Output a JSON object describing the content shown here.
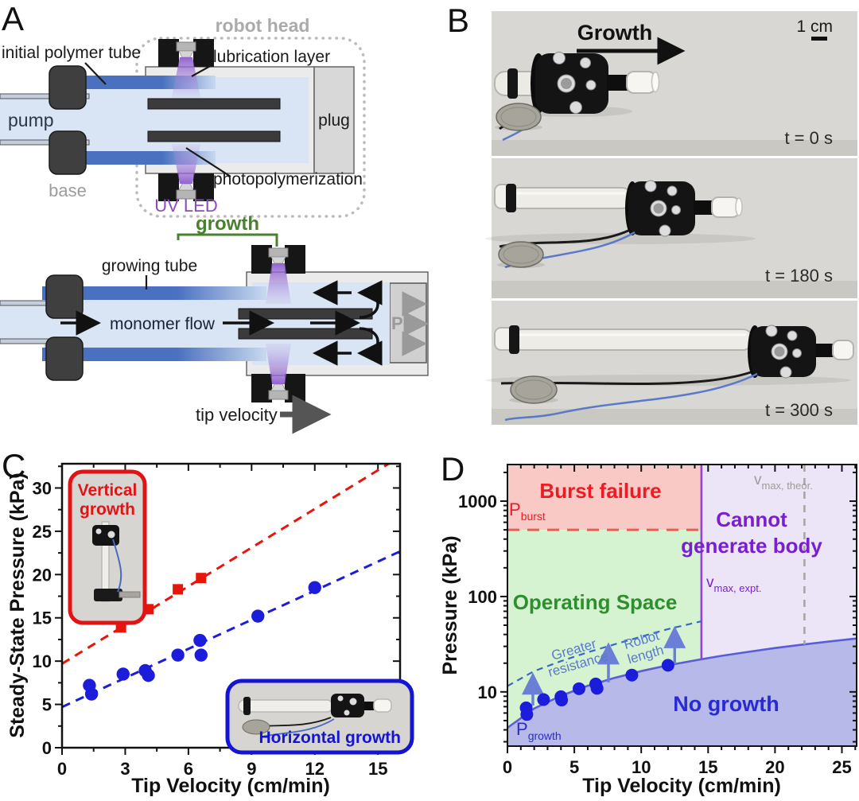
{
  "figure": {
    "panel_labels": {
      "a": "A",
      "b": "B",
      "c": "C",
      "d": "D"
    }
  },
  "panel_a": {
    "labels": {
      "robot_head": "robot head",
      "initial_polymer_tube": "initial polymer tube",
      "lubrication_layer": "lubrication layer",
      "pump": "pump",
      "plug": "plug",
      "base": "base",
      "uv_led": "UV LED",
      "photopolymerization": "photopolymerization",
      "growth": "growth",
      "growing_tube": "growing tube",
      "monomer_flow": "monomer flow",
      "pressure_symbol": "P",
      "tip_velocity": "tip velocity"
    },
    "colors": {
      "tube_blue": "#4a70c0",
      "fluid_blue": "#d9e5f4",
      "uv_purple": "#8b5bcc",
      "growth_green": "#4a8030",
      "gray_text": "#9c9c9c"
    }
  },
  "panel_b": {
    "growth_arrow_label": "Growth",
    "scale_bar_label": "1 cm",
    "frames": [
      {
        "timestamp": "t = 0 s"
      },
      {
        "timestamp": "t = 180 s"
      },
      {
        "timestamp": "t = 300 s"
      }
    ]
  },
  "chart_data": [
    {
      "panel": "C",
      "type": "scatter",
      "xlabel": "Tip Velocity (cm/min)",
      "ylabel": "Steady-State Pressure (kPa)",
      "xlim": [
        0,
        16.05
      ],
      "ylim": [
        0,
        32.8
      ],
      "xticks": [
        0,
        3,
        6,
        9,
        12,
        15
      ],
      "yticks": [
        0,
        5,
        10,
        15,
        20,
        25,
        30
      ],
      "x_minor_step": 1.5,
      "y_minor_step": 2.5,
      "grid": false,
      "series": [
        {
          "name": "Vertical growth",
          "marker": "square",
          "color": "#e8150b",
          "points": [
            [
              2.8,
              13.9
            ],
            [
              4.1,
              16.0
            ],
            [
              5.5,
              18.3
            ],
            [
              6.6,
              19.6
            ]
          ],
          "fit": {
            "intercept": 9.7,
            "slope": 1.49,
            "line_style": "dashed"
          }
        },
        {
          "name": "Horizontal growth",
          "marker": "circle",
          "color": "#1c1cdb",
          "points": [
            [
              1.3,
              7.2
            ],
            [
              1.4,
              6.2
            ],
            [
              2.9,
              8.5
            ],
            [
              3.95,
              8.9
            ],
            [
              4.1,
              8.35
            ],
            [
              5.5,
              10.7
            ],
            [
              6.55,
              12.4
            ],
            [
              6.6,
              10.7
            ],
            [
              9.3,
              15.2
            ],
            [
              12.0,
              18.5
            ]
          ],
          "fit": {
            "intercept": 4.7,
            "slope": 1.12,
            "line_style": "dashed"
          }
        }
      ],
      "insets": [
        {
          "id": "vertical",
          "label_lines": [
            "Vertical",
            "growth"
          ],
          "border_color": "#e01414"
        },
        {
          "id": "horizontal",
          "label_lines": [
            "Horizontal growth"
          ],
          "border_color": "#1414d2"
        }
      ]
    },
    {
      "panel": "D",
      "type": "scatter",
      "yscale": "log",
      "xlabel": "Tip Velocity (cm/min)",
      "ylabel": "Pressure (kPa)",
      "xlim": [
        0,
        26.1
      ],
      "ylim": [
        2.7,
        2420
      ],
      "xticks": [
        0,
        5,
        10,
        15,
        20,
        25
      ],
      "yticks": [
        10,
        100,
        1000
      ],
      "x_minor_step": 1,
      "grid": false,
      "points": {
        "name": "Measured steady-state growth pressure",
        "marker": "circle",
        "color": "#1c1cdb",
        "data": [
          [
            1.4,
            6.8
          ],
          [
            1.45,
            5.8
          ],
          [
            2.7,
            8.3
          ],
          [
            4.0,
            8.9
          ],
          [
            4.05,
            8.2
          ],
          [
            5.35,
            10.8
          ],
          [
            6.6,
            12.1
          ],
          [
            6.7,
            10.9
          ],
          [
            9.3,
            15.0
          ],
          [
            12.0,
            19.0
          ]
        ]
      },
      "boundaries": {
        "p_burst_kpa": 500,
        "v_max_expt_cm_min": 14.5,
        "v_max_theor_cm_min": 22.2,
        "p_growth_curve": [
          [
            0,
            4.2
          ],
          [
            2,
            6.7
          ],
          [
            4,
            9.1
          ],
          [
            6,
            11.6
          ],
          [
            8,
            14.0
          ],
          [
            10,
            16.5
          ],
          [
            12,
            19.0
          ],
          [
            14.5,
            22.0
          ],
          [
            16,
            23.9
          ],
          [
            18,
            26.3
          ],
          [
            20,
            28.8
          ],
          [
            22.2,
            31.5
          ],
          [
            24,
            33.7
          ],
          [
            26.1,
            36.3
          ]
        ],
        "resistance_curve": [
          [
            0,
            11.5
          ],
          [
            2,
            16.5
          ],
          [
            4,
            21.0
          ],
          [
            6,
            26.0
          ],
          [
            8,
            31.5
          ],
          [
            10,
            38.0
          ],
          [
            12,
            45.5
          ],
          [
            14.5,
            55.0
          ]
        ]
      },
      "arrows_up": [
        [
          1.9,
          7.2,
          14.0
        ],
        [
          7.55,
          12.6,
          29.0
        ],
        [
          12.5,
          19.6,
          43.0
        ]
      ],
      "regions": [
        {
          "id": "burst",
          "label": "Burst failure",
          "fill": "#f9c9c5",
          "label_color": "#ed1c24"
        },
        {
          "id": "operating",
          "label": "Operating Space",
          "fill": "#d6f3d1",
          "label_color": "#2d8f2d"
        },
        {
          "id": "cannot",
          "label_lines": [
            "Cannot",
            "generate body"
          ],
          "fill": "#ece5f7",
          "label_color": "#7a1fd0"
        },
        {
          "id": "no_growth",
          "label": "No growth",
          "fill": "#b7bae9",
          "label_color": "#2a2ad4"
        }
      ],
      "annotations": {
        "p_burst": {
          "main": "P",
          "sub": "burst",
          "color": "#ed1c24"
        },
        "p_growth": {
          "main": "P",
          "sub": "growth",
          "color": "#2a2ad4"
        },
        "v_max_expt": {
          "main": "v",
          "sub": "max, expt.",
          "color": "#7a1fd0"
        },
        "v_max_theor": {
          "main": "v",
          "sub": "max, theor.",
          "color": "#9b9b9b"
        },
        "greater_resistance": {
          "lines": [
            "Greater",
            "resistance"
          ],
          "color": "#5b79cc"
        },
        "robot_length": {
          "lines": [
            "Robot",
            "length"
          ],
          "color": "#5b79cc"
        }
      },
      "line_colors": {
        "p_growth": "#5a5ed6",
        "p_burst": "#ef5b52",
        "v_max_expt": "#9444dd",
        "v_max_theor": "#a6a6a6",
        "resistance": "#3a6ac0",
        "arrows": "#6b7fd7"
      }
    }
  ]
}
